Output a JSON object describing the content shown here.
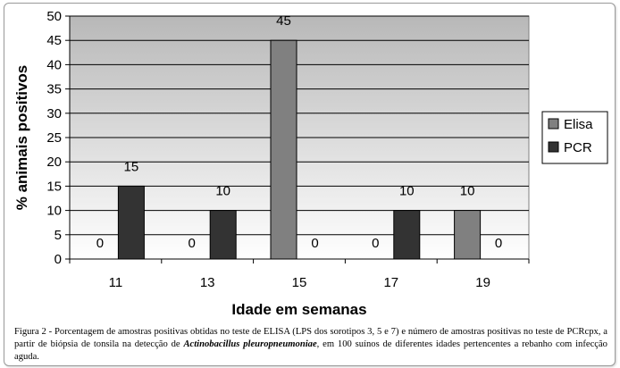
{
  "chart_data": {
    "type": "bar",
    "categories": [
      "11",
      "13",
      "15",
      "17",
      "19"
    ],
    "series": [
      {
        "name": "Elisa",
        "values": [
          0,
          0,
          45,
          0,
          10
        ],
        "color": "#808080"
      },
      {
        "name": "PCR",
        "values": [
          15,
          10,
          0,
          10,
          0
        ],
        "color": "#333333"
      }
    ],
    "xlabel": "Idade em semanas",
    "ylabel": "% animais positivos",
    "ylim": [
      0,
      50
    ],
    "yticks": [
      0,
      5,
      10,
      15,
      20,
      25,
      30,
      35,
      40,
      45,
      50
    ],
    "grid": true,
    "legend_position": "right",
    "plot_background": "gradient gray to white"
  },
  "caption": {
    "lead": "Figura 2 - Porcentagem de amostras positivas obtidas no teste de ELISA (LPS dos sorotipos 3, 5 e 7) e número de amostras positivas no teste de PCRcpx, a partir de biópsia de tonsila na detecção de ",
    "species": "Actinobacillus pleuropneumoniae",
    "tail": ", em 100 suínos de diferentes idades pertencentes a rebanho com infecção aguda."
  }
}
